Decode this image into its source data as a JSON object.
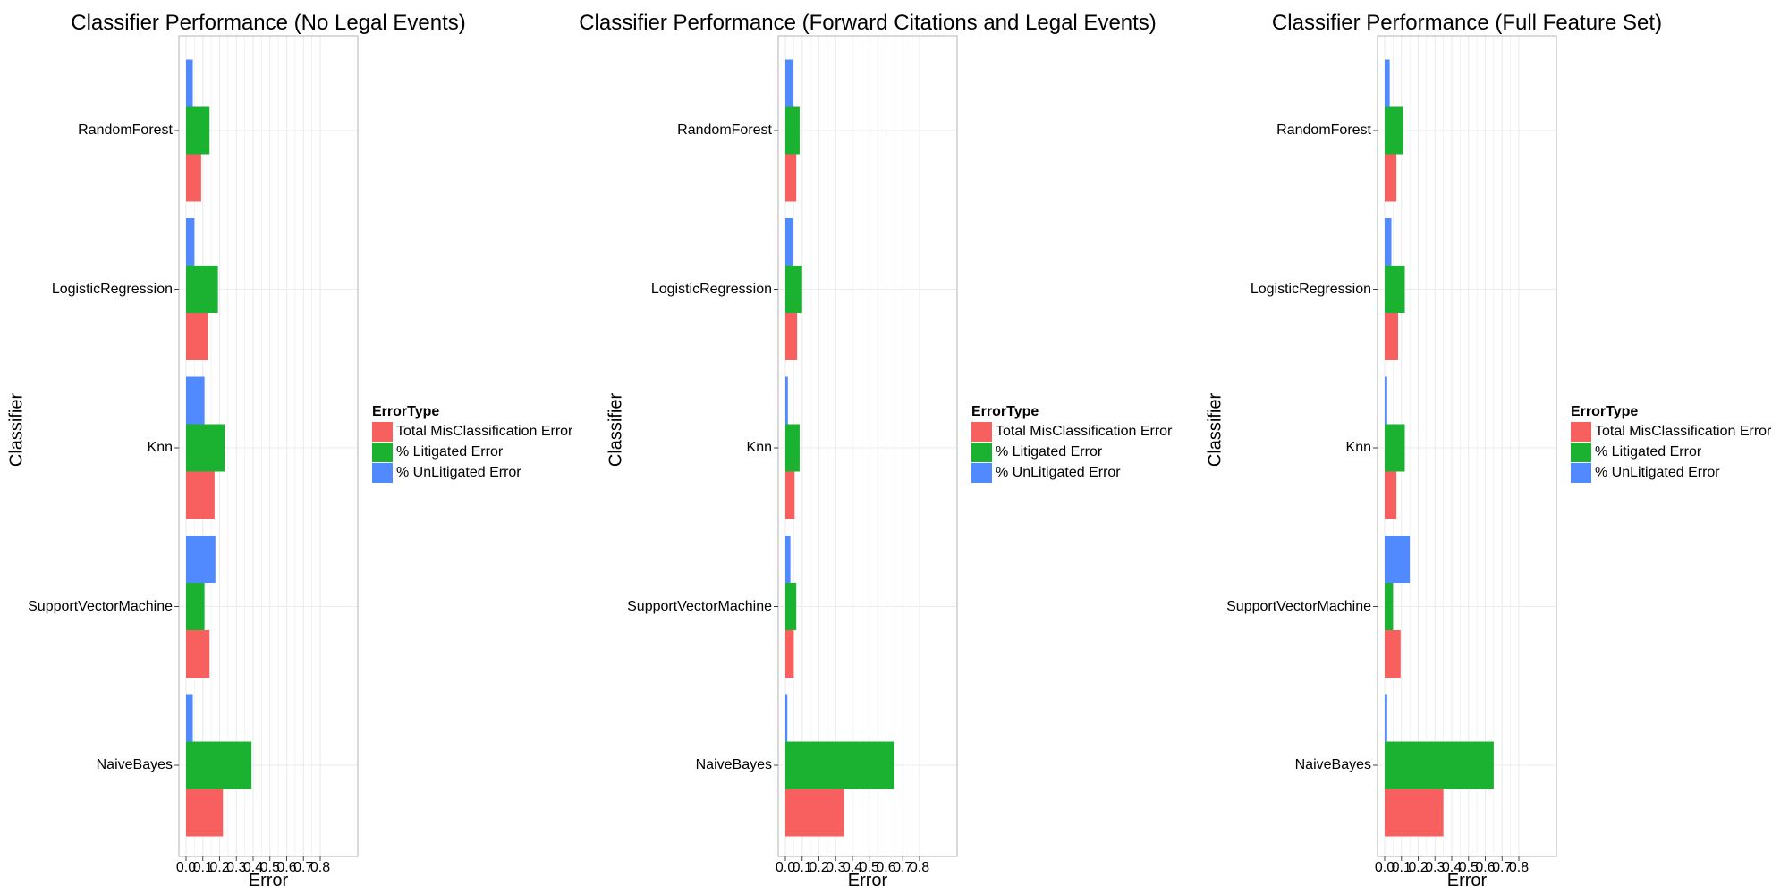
{
  "colors": {
    "Total MisClassification Error": "#F8605F",
    "% Litigated Error": "#1BB232",
    "% UnLitigated Error": "#5189FF",
    "grid": "#EBEBEB",
    "frame": "#B3B3B3"
  },
  "chart_data": [
    {
      "type": "bar",
      "orientation": "horizontal",
      "title": "Classifier Performance (No Legal Events)",
      "xlabel": "Error",
      "ylabel": "Classifier",
      "xlim": [
        -0.05,
        0.8
      ],
      "x_ticks": [
        "0.0",
        "0.1",
        "0.2",
        "0.3",
        "0.4",
        "0.5",
        "0.6",
        "0.7",
        "0.8"
      ],
      "grid": true,
      "legend_title": "ErrorType",
      "legend_position": "right",
      "categories": [
        "RandomForest",
        "LogisticRegression",
        "Knn",
        "SupportVectorMachine",
        "NaiveBayes"
      ],
      "series": [
        {
          "name": "Total MisClassification Error",
          "values": [
            0.09,
            0.13,
            0.17,
            0.14,
            0.22
          ]
        },
        {
          "name": "% Litigated Error",
          "values": [
            0.14,
            0.19,
            0.23,
            0.11,
            0.39
          ]
        },
        {
          "name": "% UnLitigated Error",
          "values": [
            0.04,
            0.05,
            0.11,
            0.175,
            0.04
          ]
        }
      ]
    },
    {
      "type": "bar",
      "orientation": "horizontal",
      "title": "Classifier Performance (Forward Citations and Legal Events)",
      "xlabel": "Error",
      "ylabel": "Classifier",
      "xlim": [
        -0.05,
        0.8
      ],
      "x_ticks": [
        "0.0",
        "0.1",
        "0.2",
        "0.3",
        "0.4",
        "0.5",
        "0.6",
        "0.7",
        "0.8"
      ],
      "grid": true,
      "legend_title": "ErrorType",
      "legend_position": "right",
      "categories": [
        "RandomForest",
        "LogisticRegression",
        "Knn",
        "SupportVectorMachine",
        "NaiveBayes"
      ],
      "series": [
        {
          "name": "Total MisClassification Error",
          "values": [
            0.065,
            0.07,
            0.055,
            0.05,
            0.35
          ]
        },
        {
          "name": "% Litigated Error",
          "values": [
            0.085,
            0.1,
            0.085,
            0.065,
            0.65
          ]
        },
        {
          "name": "% UnLitigated Error",
          "values": [
            0.045,
            0.045,
            0.015,
            0.03,
            0.012
          ]
        }
      ]
    },
    {
      "type": "bar",
      "orientation": "horizontal",
      "title": "Classifier Performance (Full Feature Set)",
      "xlabel": "Error",
      "ylabel": "Classifier",
      "xlim": [
        -0.05,
        0.8
      ],
      "x_ticks": [
        "0.0",
        "0.1",
        "0.2",
        "0.3",
        "0.4",
        "0.5",
        "0.6",
        "0.7",
        "0.8"
      ],
      "grid": true,
      "legend_title": "ErrorType",
      "legend_position": "right",
      "categories": [
        "RandomForest",
        "LogisticRegression",
        "Knn",
        "SupportVectorMachine",
        "NaiveBayes"
      ],
      "series": [
        {
          "name": "Total MisClassification Error",
          "values": [
            0.07,
            0.08,
            0.07,
            0.095,
            0.35
          ]
        },
        {
          "name": "% Litigated Error",
          "values": [
            0.11,
            0.12,
            0.12,
            0.05,
            0.65
          ]
        },
        {
          "name": "% UnLitigated Error",
          "values": [
            0.03,
            0.04,
            0.015,
            0.15,
            0.015
          ]
        }
      ]
    }
  ]
}
